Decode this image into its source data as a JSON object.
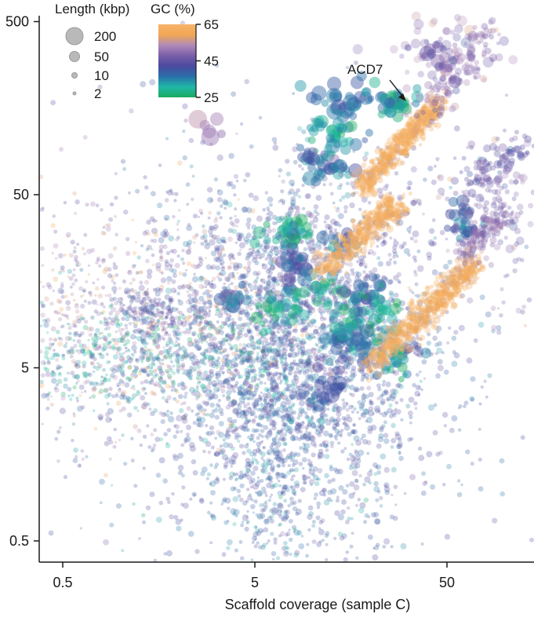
{
  "chart_data": {
    "type": "scatter",
    "title": "",
    "xlabel": "Scaffold coverage (sample C)",
    "ylabel": "",
    "x_scale": "log",
    "y_scale": "log",
    "x_ticks": [
      0.5,
      5,
      50
    ],
    "x_tick_labels": [
      "0.5",
      "5",
      "50"
    ],
    "y_ticks": [
      0.5,
      5,
      50,
      500
    ],
    "y_tick_labels": [
      "0.5",
      "5",
      "50",
      "500"
    ],
    "xlim": [
      0.4,
      130
    ],
    "ylim": [
      0.4,
      500
    ],
    "grid": false,
    "size_legend": {
      "title": "Length (kbp)",
      "entries": [
        {
          "value": 200,
          "label": "200"
        },
        {
          "value": 50,
          "label": "50"
        },
        {
          "value": 10,
          "label": "10"
        },
        {
          "value": 2,
          "label": "2"
        }
      ]
    },
    "color_legend": {
      "title": "GC (%)",
      "min": 25,
      "max": 65,
      "ticks": [
        {
          "value": 65,
          "label": "65"
        },
        {
          "value": 45,
          "label": "45"
        },
        {
          "value": 25,
          "label": "25"
        }
      ],
      "colors": [
        "#1aaa5e",
        "#1fb8a8",
        "#2a6fa8",
        "#4a4aa0",
        "#7a5ea8",
        "#b08ab8",
        "#f0a855",
        "#f8b36a"
      ]
    },
    "annotations": [
      {
        "text": "ACD7",
        "x": 28,
        "y": 160,
        "target_x": 30,
        "target_y": 150
      }
    ],
    "clusters": [
      {
        "x": 7,
        "y": 5,
        "sx": 0.45,
        "sy": 0.55,
        "gc": 40,
        "n": 1600,
        "size": 3
      },
      {
        "x": 10,
        "y": 7,
        "sx": 0.3,
        "sy": 0.45,
        "gc": 41,
        "n": 900,
        "size": 3
      },
      {
        "x": 6.5,
        "y": 2,
        "sx": 0.12,
        "sy": 0.6,
        "gc": 38,
        "n": 500,
        "size": 2.5
      },
      {
        "x": 1.6,
        "y": 10,
        "sx": 0.55,
        "sy": 0.3,
        "gc": 55,
        "n": 500,
        "size": 2.5
      },
      {
        "x": 3,
        "y": 14,
        "sx": 0.5,
        "sy": 0.35,
        "gc": 48,
        "n": 350,
        "size": 2.5
      },
      {
        "x": 0.8,
        "y": 5.5,
        "sx": 0.5,
        "sy": 0.12,
        "gc": 32,
        "n": 350,
        "size": 2.5
      },
      {
        "x": 1.8,
        "y": 6.5,
        "sx": 0.4,
        "sy": 0.12,
        "gc": 30,
        "n": 200,
        "size": 2.5
      },
      {
        "x": 1.5,
        "y": 11,
        "sx": 0.12,
        "sy": 0.06,
        "gc": 44,
        "n": 100,
        "size": 3
      },
      {
        "x": 1.1,
        "y": 8,
        "sx": 0.5,
        "sy": 0.3,
        "gc": 50,
        "n": 200,
        "size": 2.5
      },
      {
        "x": 3.5,
        "y": 8,
        "sx": 0.6,
        "sy": 0.4,
        "gc": 46,
        "n": 300,
        "size": 2.5
      },
      {
        "x": 0.7,
        "y": 4,
        "sx": 0.5,
        "sy": 0.4,
        "gc": 35,
        "n": 80,
        "size": 2.5
      },
      {
        "x": 10,
        "y": 1.5,
        "sx": 0.4,
        "sy": 0.6,
        "gc": 40,
        "n": 80,
        "size": 2.5
      },
      {
        "x": 3.8,
        "y": 13,
        "sx": 0.03,
        "sy": 0.03,
        "gc": 38,
        "n": 12,
        "size": 8
      },
      {
        "x": 7.5,
        "y": 30,
        "sx": 0.06,
        "sy": 0.04,
        "gc": 29,
        "n": 40,
        "size": 6
      },
      {
        "x": 8.2,
        "y": 19,
        "sx": 0.05,
        "sy": 0.05,
        "gc": 42,
        "n": 25,
        "size": 7
      },
      {
        "x": 7,
        "y": 11,
        "sx": 0.1,
        "sy": 0.06,
        "gc": 29,
        "n": 35,
        "size": 6
      },
      {
        "x": 12,
        "y": 14,
        "sx": 0.05,
        "sy": 0.05,
        "gc": 30,
        "n": 20,
        "size": 6
      },
      {
        "x": 20,
        "y": 13,
        "sx": 0.05,
        "sy": 0.06,
        "gc": 39,
        "n": 25,
        "size": 6
      },
      {
        "x": 13.5,
        "y": 8,
        "sx": 0.05,
        "sy": 0.05,
        "gc": 38,
        "n": 15,
        "size": 7
      },
      {
        "x": 19,
        "y": 10,
        "sx": 0.08,
        "sy": 0.08,
        "gc": 30,
        "n": 40,
        "size": 6
      },
      {
        "x": 16,
        "y": 7,
        "sx": 0.05,
        "sy": 0.06,
        "gc": 37,
        "n": 20,
        "size": 7
      },
      {
        "x": 12.5,
        "y": 3.8,
        "sx": 0.04,
        "sy": 0.06,
        "gc": 40,
        "n": 15,
        "size": 7
      },
      {
        "x": 10.5,
        "y": 3.3,
        "sx": 0.04,
        "sy": 0.05,
        "gc": 40,
        "n": 12,
        "size": 7
      },
      {
        "x": 15,
        "y": 180,
        "sx": 0.08,
        "sy": 0.05,
        "gc": 36,
        "n": 30,
        "size": 8
      },
      {
        "x": 13,
        "y": 110,
        "sx": 0.07,
        "sy": 0.07,
        "gc": 30,
        "n": 40,
        "size": 6
      },
      {
        "x": 12,
        "y": 75,
        "sx": 0.06,
        "sy": 0.05,
        "gc": 38,
        "n": 30,
        "size": 7
      },
      {
        "x": 9.5,
        "y": 80,
        "sx": 0.03,
        "sy": 0.03,
        "gc": 38,
        "n": 8,
        "size": 6
      },
      {
        "x": 27,
        "y": 170,
        "sx": 0.07,
        "sy": 0.04,
        "gc": 32,
        "n": 40,
        "size": 6
      },
      {
        "x": 48,
        "y": 360,
        "sx": 0.15,
        "sy": 0.1,
        "gc": 50,
        "n": 60,
        "size": 5
      },
      {
        "x": 45,
        "y": 300,
        "sx": 0.05,
        "sy": 0.05,
        "gc": 46,
        "n": 15,
        "size": 7
      },
      {
        "x": 60,
        "y": 35,
        "sx": 0.05,
        "sy": 0.05,
        "gc": 38,
        "n": 30,
        "size": 6
      },
      {
        "x": 90,
        "y": 45,
        "sx": 0.15,
        "sy": 0.15,
        "gc": 48,
        "n": 70,
        "size": 4
      },
      {
        "x": 28,
        "y": 5.5,
        "sx": 0.05,
        "sy": 0.05,
        "gc": 31,
        "n": 25,
        "size": 6
      },
      {
        "x": 33,
        "y": 6.5,
        "sx": 0.04,
        "sy": 0.05,
        "gc": 42,
        "n": 10,
        "size": 5
      },
      {
        "x": 100,
        "y": 30,
        "sx": 0.2,
        "sy": 0.25,
        "gc": 48,
        "n": 60,
        "size": 3.5
      },
      {
        "x": 3,
        "y": 120,
        "sx": 0.05,
        "sy": 0.05,
        "gc": 50,
        "n": 6,
        "size": 9
      },
      {
        "x": 14,
        "y": 25,
        "sx": 0.05,
        "sy": 0.05,
        "gc": 38,
        "n": 10,
        "size": 6
      },
      {
        "x": 25,
        "y": 40,
        "sx": 0.3,
        "sy": 0.3,
        "gc": 45,
        "n": 120,
        "size": 3
      }
    ],
    "streaks": [
      {
        "x0": 11,
        "y0": 18,
        "x1": 28,
        "y1": 45,
        "gc": 62,
        "n": 420,
        "size": 3.5,
        "spread": 0.035
      },
      {
        "x0": 18,
        "y0": 55,
        "x1": 45,
        "y1": 170,
        "gc": 62,
        "n": 520,
        "size": 3.5,
        "spread": 0.03
      },
      {
        "x0": 20,
        "y0": 5,
        "x1": 70,
        "y1": 20,
        "gc": 62,
        "n": 620,
        "size": 3.5,
        "spread": 0.035
      },
      {
        "x0": 60,
        "y0": 22,
        "x1": 100,
        "y1": 40,
        "gc": 50,
        "n": 140,
        "size": 3.5,
        "spread": 0.03
      },
      {
        "x0": 40,
        "y0": 150,
        "x1": 80,
        "y1": 450,
        "gc": 50,
        "n": 120,
        "size": 4,
        "spread": 0.05
      },
      {
        "x0": 60,
        "y0": 55,
        "x1": 130,
        "y1": 100,
        "gc": 45,
        "n": 80,
        "size": 4,
        "spread": 0.05
      }
    ]
  }
}
